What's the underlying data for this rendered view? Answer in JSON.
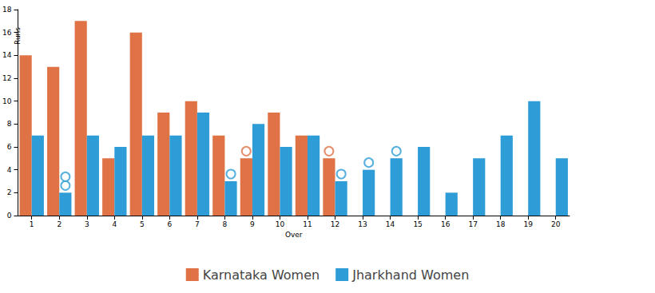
{
  "chart_data": {
    "type": "bar",
    "categories": [
      "1",
      "2",
      "3",
      "4",
      "5",
      "6",
      "7",
      "8",
      "9",
      "10",
      "11",
      "12",
      "13",
      "14",
      "15",
      "16",
      "17",
      "18",
      "19",
      "20"
    ],
    "series": [
      {
        "name": "Karnataka Women",
        "color": "#e07346",
        "values": [
          14,
          13,
          17,
          5,
          16,
          9,
          10,
          7,
          5,
          9,
          7,
          5,
          null,
          null,
          null,
          null,
          null,
          null,
          null,
          null
        ],
        "wickets": [
          0,
          0,
          0,
          0,
          0,
          0,
          0,
          0,
          1,
          0,
          0,
          1,
          0,
          0,
          0,
          0,
          0,
          0,
          0,
          0
        ]
      },
      {
        "name": "Jharkhand Women",
        "color": "#2e9cd6",
        "values": [
          7,
          2,
          7,
          6,
          7,
          7,
          9,
          3,
          8,
          6,
          7,
          3,
          4,
          5,
          6,
          2,
          5,
          7,
          10,
          5
        ],
        "wickets": [
          0,
          2,
          0,
          0,
          0,
          0,
          0,
          1,
          0,
          0,
          0,
          1,
          1,
          1,
          0,
          0,
          0,
          0,
          0,
          0
        ]
      }
    ],
    "x_label": "Over",
    "y_label": "Runs",
    "ylim": [
      0,
      18
    ],
    "yticks": [
      0,
      2,
      4,
      6,
      8,
      10,
      12,
      14,
      16,
      18
    ],
    "grid": false,
    "legend": "bottom"
  }
}
